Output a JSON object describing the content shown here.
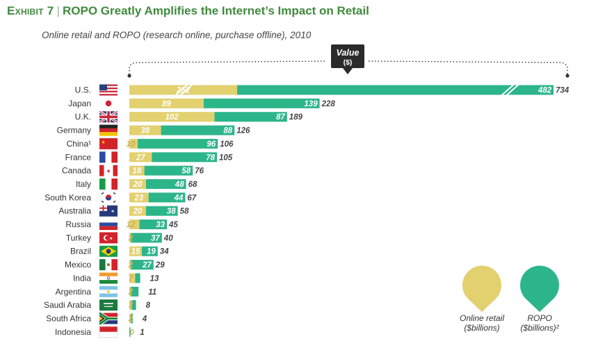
{
  "header": {
    "exhibit": "Exhibit 7",
    "separator": "|",
    "title": "ROPO Greatly Amplifies the Internet’s Impact on Retail",
    "subtitle": "Online retail and ROPO (research online, purchase offline), 2010"
  },
  "colors": {
    "online": "#e3d06f",
    "ropo": "#2db58a",
    "title": "#3f8a3c"
  },
  "chart_data": {
    "type": "bar",
    "orientation": "horizontal",
    "stacked": true,
    "value_callout": {
      "line1": "Value",
      "line2": "($)"
    },
    "categories": [
      "U.S.",
      "Japan",
      "U.K.",
      "Germany",
      "China¹",
      "France",
      "Canada",
      "Italy",
      "South Korea",
      "Australia",
      "Russia",
      "Turkey",
      "Brazil",
      "Mexico",
      "India",
      "Argentina",
      "Saudi Arabia",
      "South Africa",
      "Indonesia"
    ],
    "series": [
      {
        "name": "Online retail ($billions)",
        "values": [
          252,
          89,
          102,
          38,
          10,
          27,
          18,
          20,
          23,
          20,
          12,
          2,
          15,
          2,
          7,
          2,
          3,
          2,
          0
        ]
      },
      {
        "name": "ROPO ($billions)²",
        "values": [
          482,
          139,
          87,
          88,
          96,
          78,
          58,
          48,
          44,
          38,
          33,
          37,
          19,
          27,
          6,
          9,
          5,
          2,
          1
        ]
      }
    ],
    "totals": [
      734,
      228,
      189,
      126,
      106,
      105,
      76,
      68,
      67,
      58,
      45,
      40,
      34,
      29,
      13,
      11,
      8,
      4,
      1
    ],
    "axis_break": true
  },
  "legend": [
    {
      "line1": "Online retail",
      "line2": "($billions)"
    },
    {
      "line1": "ROPO",
      "line2": "($billions)²"
    }
  ]
}
